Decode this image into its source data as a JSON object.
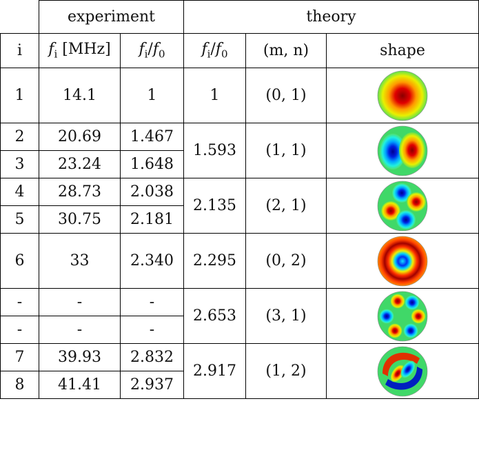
{
  "header": {
    "experiment": "experiment",
    "theory": "theory"
  },
  "columns": {
    "i": "i",
    "freq": "f",
    "freq_sub": "i",
    "freq_unit": " [MHz]",
    "ratio_num": "f",
    "ratio_num_sub": "i",
    "ratio_den": "f",
    "ratio_den_sub": "0",
    "mn": "(m, n)",
    "shape": "shape"
  },
  "rows": [
    {
      "i": "1",
      "f": "14.1",
      "r": "1"
    },
    {
      "i": "2",
      "f": "20.69",
      "r": "1.467"
    },
    {
      "i": "3",
      "f": "23.24",
      "r": "1.648"
    },
    {
      "i": "4",
      "f": "28.73",
      "r": "2.038"
    },
    {
      "i": "5",
      "f": "30.75",
      "r": "2.181"
    },
    {
      "i": "6",
      "f": "33",
      "r": "2.340"
    },
    {
      "i": "-",
      "f": "-",
      "r": "-"
    },
    {
      "i": "-",
      "f": "-",
      "r": "-"
    },
    {
      "i": "7",
      "f": "39.93",
      "r": "2.832"
    },
    {
      "i": "8",
      "f": "41.41",
      "r": "2.937"
    }
  ],
  "theory": [
    {
      "ratio": "1",
      "mn": "(0, 1)",
      "shape": "mode-0-1"
    },
    {
      "ratio": "1.593",
      "mn": "(1, 1)",
      "shape": "mode-1-1"
    },
    {
      "ratio": "2.135",
      "mn": "(2, 1)",
      "shape": "mode-2-1"
    },
    {
      "ratio": "2.295",
      "mn": "(0, 2)",
      "shape": "mode-0-2"
    },
    {
      "ratio": "2.653",
      "mn": "(3, 1)",
      "shape": "mode-3-1"
    },
    {
      "ratio": "2.917",
      "mn": "(1, 2)",
      "shape": "mode-1-2"
    }
  ],
  "colors": {
    "hot": "#b30000",
    "cold": "#00008f",
    "mid": "#22d060",
    "edge": "#a0e020"
  }
}
